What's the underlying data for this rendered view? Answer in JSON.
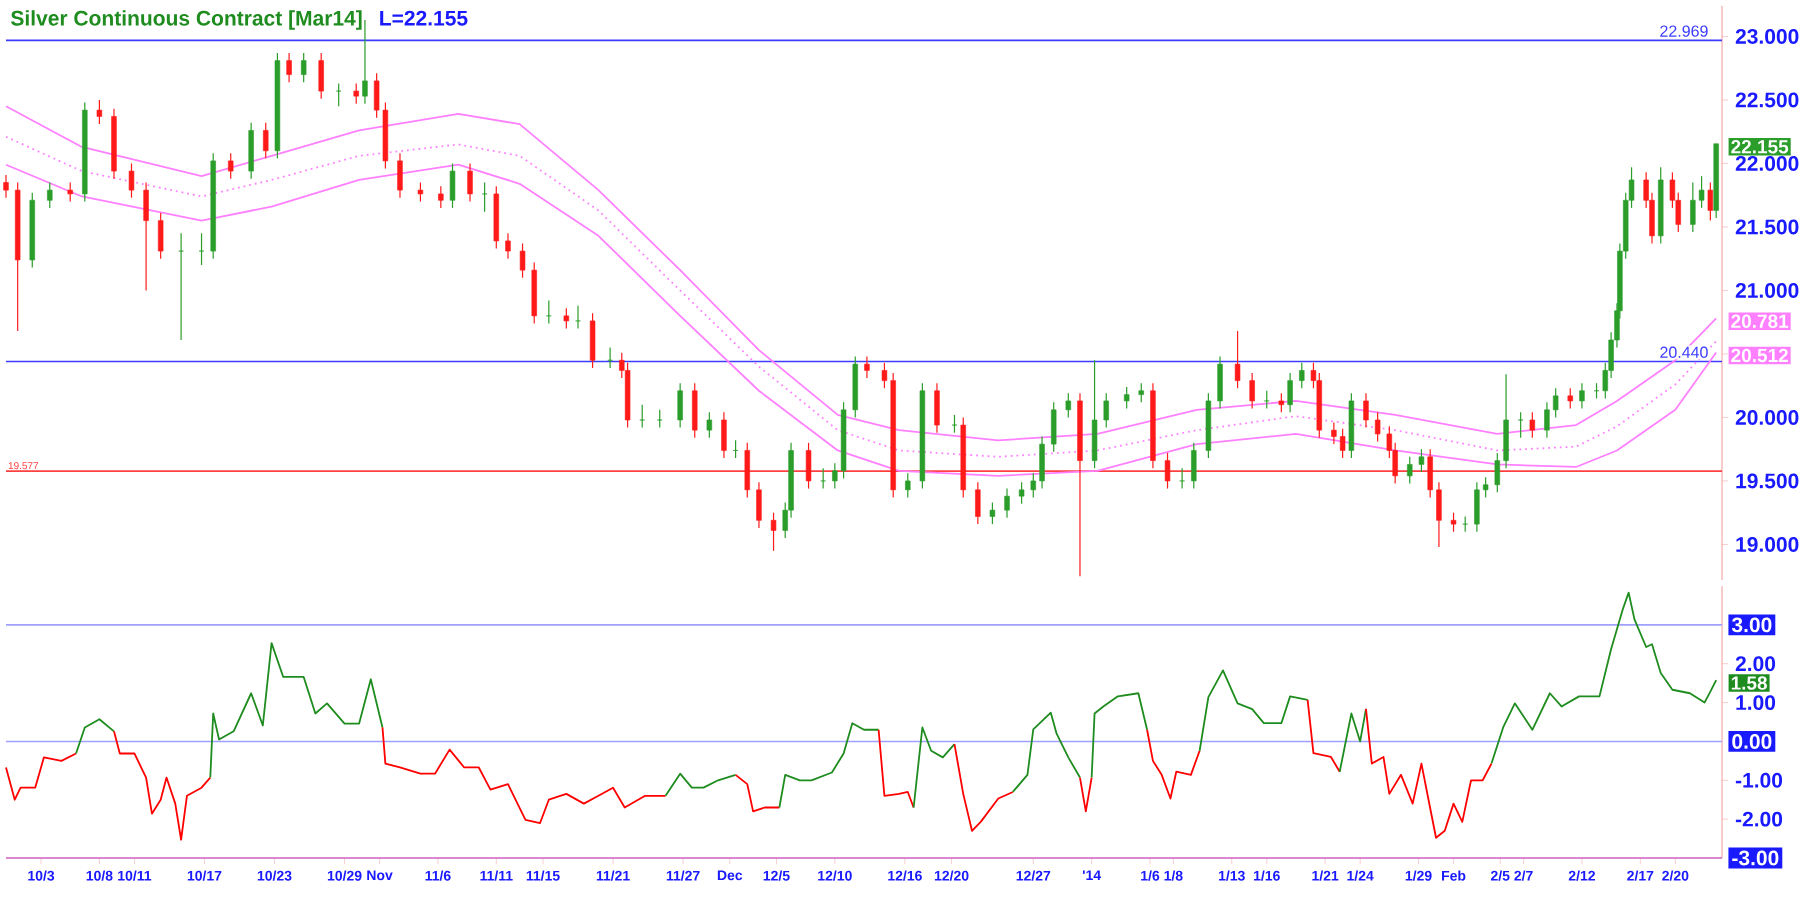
{
  "chart_data": [
    {
      "type": "candlestick",
      "title": "Silver Continuous Contract [Mar14]",
      "subtitle": "L=22.155",
      "x": [
        "2013-09-30",
        "2013-10-01",
        "2013-10-02T06:00",
        "2013-10-03T18:00",
        "2013-10-05T12:00",
        "2013-10-06T18:00",
        "2013-10-08",
        "2013-10-09T06:00",
        "2013-10-10T18:00",
        "2013-10-12",
        "2013-10-13T06:00",
        "2013-10-15",
        "2013-10-16T18:00",
        "2013-10-17T18:00",
        "2013-10-19T06:00",
        "2013-10-21",
        "2013-10-22T06:00",
        "2013-10-23T06:00",
        "2013-10-24T06:00",
        "2013-10-25T12:00",
        "2013-10-27",
        "2013-10-28T12:00",
        "2013-10-30",
        "2013-10-30T18:00",
        "2013-10-31T18:00",
        "2013-11-01T12:00",
        "2013-11-02T18:00",
        "2013-11-04T12:00",
        "2013-11-06T06:00",
        "2013-11-07T06:00",
        "2013-11-08T18:00",
        "2013-11-10",
        "2013-11-11",
        "2013-11-12",
        "2013-11-13T06:00",
        "2013-11-14T06:00",
        "2013-11-15T12:00",
        "2013-11-17",
        "2013-11-18",
        "2013-11-19T06:00",
        "2013-11-20T18:00",
        "2013-11-21T18:00",
        "2013-11-22T06:00",
        "2013-11-23T12:00",
        "2013-11-25",
        "2013-11-26T18:00",
        "2013-11-28",
        "2013-11-29T06:00",
        "2013-11-30T12:00",
        "2013-12-01T12:00",
        "2013-12-02T12:00",
        "2013-12-03T12:00",
        "2013-12-04T18:00",
        "2013-12-05T18:00",
        "2013-12-06T06:00",
        "2013-12-07T18:00",
        "2013-12-09",
        "2013-12-10",
        "2013-12-10T18:00",
        "2013-12-11T18:00",
        "2013-12-12T18:00",
        "2013-12-14T06:00",
        "2013-12-15",
        "2013-12-16T06:00",
        "2013-12-17T12:00",
        "2013-12-18T18:00",
        "2013-12-20T06:00",
        "2013-12-21",
        "2013-12-22T06:00",
        "2013-12-23T12:00",
        "2013-12-24T18:00",
        "2013-12-26",
        "2013-12-27",
        "2013-12-27T18:00",
        "2013-12-28T18:00",
        "2013-12-30",
        "2013-12-31",
        "2014-01-01T06:00",
        "2014-01-02T06:00",
        "2014-01-04",
        "2014-01-05T06:00",
        "2014-01-06T06:00",
        "2014-01-07T12:00",
        "2014-01-08T18:00",
        "2014-01-09T18:00",
        "2014-01-11",
        "2014-01-12",
        "2014-01-13T12:00",
        "2014-01-14T18:00",
        "2014-01-16",
        "2014-01-17T06:00",
        "2014-01-18",
        "2014-01-19",
        "2014-01-20",
        "2014-01-20T12:00",
        "2014-01-21T18:00",
        "2014-01-22T12:00",
        "2014-01-23T06:00",
        "2014-01-24T12:00",
        "2014-01-25T12:00",
        "2014-01-26T12:00",
        "2014-01-27",
        "2014-01-28T06:00",
        "2014-01-29T06:00",
        "2014-01-30",
        "2014-01-30T18:00",
        "2014-02-01",
        "2014-02-02",
        "2014-02-03",
        "2014-02-03T18:00",
        "2014-02-04T18:00",
        "2014-02-05T12:00",
        "2014-02-06T18:00",
        "2014-02-07T18:00",
        "2014-02-09",
        "2014-02-09T18:00",
        "2014-02-11",
        "2014-02-12",
        "2014-02-13T06:00",
        "2014-02-14",
        "2014-02-14T12:00",
        "2014-02-15",
        "2014-02-15T06:00",
        "2014-02-15T18:00",
        "2014-02-16T06:00",
        "2014-02-17T12:00",
        "2014-02-18",
        "2014-02-18T18:00",
        "2014-02-19T18:00",
        "2014-02-20T06:00",
        "2014-02-21T12:00",
        "2014-02-22T06:00",
        "2014-02-23",
        "2014-02-23T12:00"
      ],
      "ohlc": [
        [
          21.85,
          21.91,
          21.73,
          21.79
        ],
        [
          21.79,
          21.85,
          20.68,
          21.24
        ],
        [
          21.24,
          21.77,
          21.18,
          21.71
        ],
        [
          21.71,
          21.85,
          21.65,
          21.79
        ],
        [
          21.79,
          21.85,
          21.7,
          21.76
        ],
        [
          21.76,
          22.48,
          21.7,
          22.42
        ],
        [
          22.42,
          22.5,
          22.31,
          22.37
        ],
        [
          22.37,
          22.43,
          21.88,
          21.94
        ],
        [
          21.94,
          22.0,
          21.73,
          21.79
        ],
        [
          21.79,
          21.85,
          21.0,
          21.55
        ],
        [
          21.55,
          21.61,
          21.25,
          21.31
        ],
        [
          21.31,
          21.45,
          20.61,
          21.31
        ],
        [
          21.31,
          21.45,
          21.2,
          21.31
        ],
        [
          21.31,
          22.08,
          21.25,
          22.02
        ],
        [
          22.02,
          22.08,
          21.88,
          21.94
        ],
        [
          21.94,
          22.32,
          21.88,
          22.26
        ],
        [
          22.26,
          22.32,
          22.04,
          22.1
        ],
        [
          22.1,
          22.87,
          22.04,
          22.81
        ],
        [
          22.81,
          22.87,
          22.64,
          22.7
        ],
        [
          22.7,
          22.87,
          22.64,
          22.81
        ],
        [
          22.81,
          22.87,
          22.51,
          22.57
        ],
        [
          22.57,
          22.63,
          22.45,
          22.57
        ],
        [
          22.57,
          22.63,
          22.47,
          22.53
        ],
        [
          22.53,
          23.13,
          22.47,
          22.65
        ],
        [
          22.65,
          22.71,
          22.36,
          22.42
        ],
        [
          22.42,
          22.48,
          21.96,
          22.02
        ],
        [
          22.02,
          22.08,
          21.73,
          21.79
        ],
        [
          21.79,
          21.85,
          21.7,
          21.76
        ],
        [
          21.76,
          21.82,
          21.65,
          21.71
        ],
        [
          21.71,
          22.0,
          21.65,
          21.94
        ],
        [
          21.94,
          22.0,
          21.7,
          21.76
        ],
        [
          21.76,
          21.85,
          21.62,
          21.76
        ],
        [
          21.76,
          21.82,
          21.33,
          21.39
        ],
        [
          21.39,
          21.45,
          21.25,
          21.31
        ],
        [
          21.31,
          21.37,
          21.1,
          21.16
        ],
        [
          21.16,
          21.22,
          20.74,
          20.8
        ],
        [
          20.8,
          20.92,
          20.74,
          20.8
        ],
        [
          20.8,
          20.86,
          20.7,
          20.76
        ],
        [
          20.76,
          20.88,
          20.7,
          20.76
        ],
        [
          20.76,
          20.82,
          20.39,
          20.45
        ],
        [
          20.45,
          20.55,
          20.39,
          20.45
        ],
        [
          20.45,
          20.51,
          20.31,
          20.37
        ],
        [
          20.37,
          20.43,
          19.92,
          19.98
        ],
        [
          19.98,
          20.1,
          19.92,
          19.98
        ],
        [
          19.98,
          20.06,
          19.92,
          19.98
        ],
        [
          19.98,
          20.27,
          19.92,
          20.21
        ],
        [
          20.21,
          20.27,
          19.84,
          19.9
        ],
        [
          19.9,
          20.04,
          19.84,
          19.98
        ],
        [
          19.98,
          20.04,
          19.68,
          19.74
        ],
        [
          19.74,
          19.82,
          19.68,
          19.74
        ],
        [
          19.74,
          19.8,
          19.37,
          19.43
        ],
        [
          19.43,
          19.49,
          19.13,
          19.19
        ],
        [
          19.19,
          19.25,
          18.95,
          19.11
        ],
        [
          19.11,
          19.33,
          19.05,
          19.27
        ],
        [
          19.27,
          19.8,
          19.21,
          19.74
        ],
        [
          19.74,
          19.8,
          19.44,
          19.5
        ],
        [
          19.5,
          19.6,
          19.44,
          19.5
        ],
        [
          19.5,
          19.64,
          19.44,
          19.58
        ],
        [
          19.58,
          20.12,
          19.52,
          20.06
        ],
        [
          20.06,
          20.48,
          20.0,
          20.42
        ],
        [
          20.42,
          20.48,
          20.31,
          20.37
        ],
        [
          20.37,
          20.43,
          20.23,
          20.29
        ],
        [
          20.29,
          20.35,
          19.37,
          19.43
        ],
        [
          19.43,
          19.56,
          19.37,
          19.5
        ],
        [
          19.5,
          20.27,
          19.44,
          20.21
        ],
        [
          20.21,
          20.27,
          19.88,
          19.94
        ],
        [
          19.94,
          20.02,
          19.88,
          19.94
        ],
        [
          19.94,
          20.0,
          19.37,
          19.43
        ],
        [
          19.43,
          19.49,
          19.16,
          19.22
        ],
        [
          19.22,
          19.33,
          19.16,
          19.27
        ],
        [
          19.27,
          19.44,
          19.21,
          19.38
        ],
        [
          19.38,
          19.49,
          19.32,
          19.43
        ],
        [
          19.43,
          19.56,
          19.37,
          19.5
        ],
        [
          19.5,
          19.85,
          19.44,
          19.79
        ],
        [
          19.79,
          20.12,
          19.73,
          20.06
        ],
        [
          20.06,
          20.19,
          20.0,
          20.13
        ],
        [
          20.13,
          20.19,
          18.75,
          19.66
        ],
        [
          19.66,
          20.45,
          19.6,
          19.98
        ],
        [
          19.98,
          20.19,
          19.92,
          20.13
        ],
        [
          20.13,
          20.24,
          20.07,
          20.18
        ],
        [
          20.18,
          20.27,
          20.12,
          20.21
        ],
        [
          20.21,
          20.27,
          19.6,
          19.66
        ],
        [
          19.66,
          19.72,
          19.44,
          19.5
        ],
        [
          19.5,
          19.6,
          19.44,
          19.5
        ],
        [
          19.5,
          19.8,
          19.44,
          19.74
        ],
        [
          19.74,
          20.19,
          19.68,
          20.13
        ],
        [
          20.13,
          20.48,
          20.07,
          20.42
        ],
        [
          20.42,
          20.68,
          20.23,
          20.29
        ],
        [
          20.29,
          20.35,
          20.07,
          20.13
        ],
        [
          20.13,
          20.21,
          20.07,
          20.13
        ],
        [
          20.13,
          20.19,
          20.04,
          20.1
        ],
        [
          20.1,
          20.35,
          20.04,
          20.29
        ],
        [
          20.29,
          20.43,
          20.23,
          20.37
        ],
        [
          20.37,
          20.43,
          20.23,
          20.29
        ],
        [
          20.29,
          20.35,
          19.84,
          19.9
        ],
        [
          19.9,
          19.96,
          19.79,
          19.85
        ],
        [
          19.85,
          19.91,
          19.68,
          19.74
        ],
        [
          19.74,
          20.19,
          19.68,
          20.13
        ],
        [
          20.13,
          20.19,
          19.92,
          19.98
        ],
        [
          19.98,
          20.04,
          19.81,
          19.87
        ],
        [
          19.87,
          19.93,
          19.68,
          19.74
        ],
        [
          19.74,
          19.8,
          19.48,
          19.54
        ],
        [
          19.54,
          19.69,
          19.48,
          19.63
        ],
        [
          19.63,
          19.75,
          19.57,
          19.69
        ],
        [
          19.69,
          19.75,
          19.37,
          19.43
        ],
        [
          19.43,
          19.49,
          18.98,
          19.19
        ],
        [
          19.19,
          19.25,
          19.1,
          19.16
        ],
        [
          19.16,
          19.22,
          19.1,
          19.16
        ],
        [
          19.16,
          19.49,
          19.1,
          19.43
        ],
        [
          19.43,
          19.53,
          19.37,
          19.47
        ],
        [
          19.47,
          19.72,
          19.41,
          19.66
        ],
        [
          19.66,
          20.34,
          19.6,
          19.98
        ],
        [
          19.98,
          20.04,
          19.84,
          19.98
        ],
        [
          19.98,
          20.04,
          19.84,
          19.9
        ],
        [
          19.9,
          20.12,
          19.84,
          20.06
        ],
        [
          20.06,
          20.23,
          20.0,
          20.17
        ],
        [
          20.17,
          20.23,
          20.07,
          20.13
        ],
        [
          20.13,
          20.27,
          20.07,
          20.21
        ],
        [
          20.21,
          20.27,
          20.15,
          20.21
        ],
        [
          20.21,
          20.43,
          20.15,
          20.37
        ],
        [
          20.37,
          20.67,
          20.31,
          20.61
        ],
        [
          20.61,
          20.9,
          20.55,
          20.84
        ],
        [
          20.84,
          21.37,
          20.78,
          21.31
        ],
        [
          21.31,
          21.77,
          21.25,
          21.71
        ],
        [
          21.71,
          21.97,
          21.65,
          21.87
        ],
        [
          21.87,
          21.93,
          21.65,
          21.71
        ],
        [
          21.71,
          21.77,
          21.37,
          21.43
        ],
        [
          21.43,
          21.97,
          21.37,
          21.87
        ],
        [
          21.87,
          21.93,
          21.65,
          21.71
        ],
        [
          21.71,
          21.77,
          21.46,
          21.52
        ],
        [
          21.52,
          21.85,
          21.46,
          21.71
        ],
        [
          21.71,
          21.9,
          21.65,
          21.79
        ],
        [
          21.79,
          21.85,
          21.55,
          21.63
        ],
        [
          21.63,
          22.155,
          21.57,
          22.155
        ]
      ],
      "series": [
        {
          "type": "line",
          "color": "#ff80ff",
          "line_style": "solid",
          "x": [
            "2013-09-30",
            "2013-10-06T12:00",
            "2013-10-16T18:00",
            "2013-10-22T18:00",
            "2013-10-30T06:00",
            "2013-11-07T18:00",
            "2013-11-13",
            "2013-11-19T18:00",
            "2013-11-26T18:00",
            "2013-12-03T12:00",
            "2013-12-10T06:00",
            "2013-12-15T12:00",
            "2013-12-24",
            "2014-01-01T12:00",
            "2014-01-10",
            "2014-01-18T12:00",
            "2014-01-27",
            "2014-02-04T18:00",
            "2014-02-11T12:00",
            "2014-02-15",
            "2014-02-20",
            "2014-02-23T12:00"
          ],
          "values": [
            22.45,
            22.13,
            21.9,
            22.06,
            22.26,
            22.39,
            22.31,
            21.79,
            21.16,
            20.53,
            20.02,
            19.9,
            19.82,
            19.87,
            20.06,
            20.13,
            20.02,
            19.87,
            19.94,
            20.13,
            20.45,
            20.781
          ]
        },
        {
          "type": "line",
          "color": "#ff80ff",
          "line_style": "dotted",
          "x": [
            "2013-09-30",
            "2013-10-06T12:00",
            "2013-10-16T18:00",
            "2013-10-22T18:00",
            "2013-10-30T06:00",
            "2013-11-07T18:00",
            "2013-11-13",
            "2013-11-19T18:00",
            "2013-11-26T18:00",
            "2013-12-03T12:00",
            "2013-12-10T06:00",
            "2013-12-15T12:00",
            "2013-12-24",
            "2014-01-01T12:00",
            "2014-01-10",
            "2014-01-18T12:00",
            "2014-01-27",
            "2014-02-04T18:00",
            "2014-02-11T12:00",
            "2014-02-15",
            "2014-02-20",
            "2014-02-23T12:00"
          ],
          "values": [
            22.21,
            21.94,
            21.74,
            21.87,
            22.06,
            22.15,
            22.06,
            21.63,
            21.0,
            20.4,
            19.9,
            19.74,
            19.69,
            19.74,
            19.9,
            20.01,
            19.9,
            19.74,
            19.77,
            19.93,
            20.26,
            20.6
          ]
        },
        {
          "type": "line",
          "color": "#ff80ff",
          "line_style": "solid",
          "x": [
            "2013-09-30",
            "2013-10-06T12:00",
            "2013-10-16T18:00",
            "2013-10-22T18:00",
            "2013-10-30T06:00",
            "2013-11-07T18:00",
            "2013-11-13",
            "2013-11-19T18:00",
            "2013-11-26T18:00",
            "2013-12-03T12:00",
            "2013-12-10T06:00",
            "2013-12-15T12:00",
            "2013-12-24",
            "2014-01-01T12:00",
            "2014-01-10",
            "2014-01-18T12:00",
            "2014-01-27",
            "2014-02-04T18:00",
            "2014-02-11T12:00",
            "2014-02-15",
            "2014-02-20",
            "2014-02-23T12:00"
          ],
          "values": [
            21.99,
            21.74,
            21.55,
            21.66,
            21.87,
            21.99,
            21.84,
            21.43,
            20.8,
            20.21,
            19.74,
            19.58,
            19.54,
            19.58,
            19.79,
            19.87,
            19.74,
            19.63,
            19.61,
            19.74,
            20.06,
            20.512
          ]
        }
      ],
      "xlim": [
        "2013-09-30",
        "2014-02-24"
      ],
      "ylim": [
        18.72,
        23.24
      ],
      "yticks": [
        {
          "value": 19,
          "label": "19.000"
        },
        {
          "value": 19.5,
          "label": "19.500"
        },
        {
          "value": 20,
          "label": "20.000"
        },
        {
          "value": 20.5,
          "label": null
        },
        {
          "value": 21,
          "label": "21.000"
        },
        {
          "value": 21.5,
          "label": "21.500"
        },
        {
          "value": 22,
          "label": "22.000"
        },
        {
          "value": 22.5,
          "label": "22.500"
        },
        {
          "value": 23,
          "label": "23.000"
        }
      ],
      "tick_labels": "y",
      "ref_lines": [
        {
          "axis": "y",
          "value": 22.969,
          "label": "22.969",
          "color": "#3c3cff"
        },
        {
          "axis": "y",
          "value": 20.44,
          "label": "20.440",
          "color": "#3c3cff"
        },
        {
          "axis": "y",
          "value": 19.577,
          "label": "19.577",
          "color": "#ff4040"
        }
      ],
      "annotations": [
        {
          "text": "22.155",
          "x": "2014-02-23T12:00",
          "y": 22.155
        },
        {
          "text": "20.781",
          "x": "2014-02-23T12:00",
          "y": 20.781
        },
        {
          "text": "20.512",
          "x": "2014-02-23T12:00",
          "y": 20.512
        }
      ]
    },
    {
      "type": "line",
      "series": [
        {
          "color": "#ff0000",
          "x": [
            "2013-09-30",
            "2013-09-30T18:00",
            "2013-10-01T06:00",
            "2013-10-02T12:00",
            "2013-10-03T06:00",
            "2013-10-04T18:00",
            "2013-10-06"
          ],
          "values": [
            -0.67,
            -1.5,
            -1.19,
            -1.19,
            -0.41,
            -0.5,
            -0.31
          ]
        },
        {
          "color": "#1e8c1e",
          "x": [
            "2013-10-06",
            "2013-10-06T18:00",
            "2013-10-08",
            "2013-10-09T06:00"
          ],
          "values": [
            -0.31,
            0.36,
            0.57,
            0.26
          ]
        },
        {
          "color": "#ff0000",
          "x": [
            "2013-10-09T06:00",
            "2013-10-09T18:00",
            "2013-10-11",
            "2013-10-12",
            "2013-10-12T12:00",
            "2013-10-13T06:00",
            "2013-10-13T18:00",
            "2013-10-14T12:00",
            "2013-10-15",
            "2013-10-15T12:00",
            "2013-10-16T18:00",
            "2013-10-17T12:00"
          ],
          "values": [
            0.26,
            -0.31,
            -0.31,
            -0.93,
            -1.86,
            -1.5,
            -0.93,
            -1.6,
            -2.53,
            -1.4,
            -1.19,
            -0.93
          ]
        },
        {
          "color": "#1e8c1e",
          "x": [
            "2013-10-17T12:00",
            "2013-10-17T18:00",
            "2013-10-18T06:00",
            "2013-10-19T12:00",
            "2013-10-21",
            "2013-10-22",
            "2013-10-22T18:00",
            "2013-10-23T18:00",
            "2013-10-25T12:00",
            "2013-10-26T12:00",
            "2013-10-27T12:00",
            "2013-10-29",
            "2013-10-30T06:00",
            "2013-10-31T06:00",
            "2013-11-01T06:00"
          ],
          "values": [
            -0.93,
            0.72,
            0.05,
            0.26,
            1.24,
            0.41,
            2.53,
            1.66,
            1.66,
            0.72,
            0.98,
            0.46,
            0.46,
            1.6,
            0.36
          ]
        },
        {
          "color": "#ff0000",
          "x": [
            "2013-11-01T06:00",
            "2013-11-01T12:00",
            "2013-11-02T18:00",
            "2013-11-04T12:00",
            "2013-11-05T18:00",
            "2013-11-07",
            "2013-11-08T06:00",
            "2013-11-09T12:00",
            "2013-11-10T12:00",
            "2013-11-12",
            "2013-11-13T12:00",
            "2013-11-14T18:00",
            "2013-11-15T12:00",
            "2013-11-17",
            "2013-11-18T12:00",
            "2013-11-19T18:00",
            "2013-11-21",
            "2013-11-22",
            "2013-11-23T18:00",
            "2013-11-25T12:00"
          ],
          "values": [
            0.36,
            -0.57,
            -0.67,
            -0.83,
            -0.83,
            -0.21,
            -0.67,
            -0.67,
            -1.24,
            -1.1,
            -2.02,
            -2.1,
            -1.5,
            -1.35,
            -1.6,
            -1.4,
            -1.19,
            -1.7,
            -1.4,
            -1.4
          ]
        },
        {
          "color": "#1e8c1e",
          "x": [
            "2013-11-25T12:00",
            "2013-11-26T18:00",
            "2013-11-27T18:00",
            "2013-11-28T18:00",
            "2013-11-30",
            "2013-12-01T12:00"
          ],
          "values": [
            -1.4,
            -0.83,
            -1.19,
            -1.19,
            -1.0,
            -0.86
          ]
        },
        {
          "color": "#ff0000",
          "x": [
            "2013-12-01T12:00",
            "2013-12-02T12:00",
            "2013-12-03",
            "2013-12-04",
            "2013-12-05T06:00"
          ],
          "values": [
            -0.86,
            -1.1,
            -1.8,
            -1.7,
            -1.7
          ]
        },
        {
          "color": "#1e8c1e",
          "x": [
            "2013-12-05T06:00",
            "2013-12-05T18:00",
            "2013-12-07",
            "2013-12-08",
            "2013-12-09T18:00",
            "2013-12-10T18:00",
            "2013-12-11T12:00",
            "2013-12-12T12:00",
            "2013-12-13T18:00"
          ],
          "values": [
            -1.7,
            -0.86,
            -1.0,
            -1.0,
            -0.8,
            -0.31,
            0.47,
            0.3,
            0.3
          ]
        },
        {
          "color": "#ff0000",
          "x": [
            "2013-12-13T18:00",
            "2013-12-14T06:00",
            "2013-12-15T12:00",
            "2013-12-16T06:00",
            "2013-12-16T18:00"
          ],
          "values": [
            0.3,
            -1.4,
            -1.35,
            -1.3,
            -1.7
          ]
        },
        {
          "color": "#1e8c1e",
          "x": [
            "2013-12-16T18:00",
            "2013-12-17T12:00",
            "2013-12-18T06:00",
            "2013-12-19T06:00",
            "2013-12-20T06:00"
          ],
          "values": [
            -1.7,
            0.36,
            -0.24,
            -0.41,
            -0.07
          ]
        },
        {
          "color": "#ff0000",
          "x": [
            "2013-12-20T06:00",
            "2013-12-21",
            "2013-12-21T18:00",
            "2013-12-22T12:00",
            "2013-12-24",
            "2013-12-25T06:00"
          ],
          "values": [
            -0.07,
            -1.35,
            -2.3,
            -2.07,
            -1.47,
            -1.3
          ]
        },
        {
          "color": "#1e8c1e",
          "x": [
            "2013-12-25T06:00",
            "2013-12-26T12:00",
            "2013-12-27",
            "2013-12-28T12:00",
            "2013-12-29",
            "2013-12-30",
            "2013-12-31"
          ],
          "values": [
            -1.3,
            -0.86,
            0.31,
            0.74,
            0.2,
            -0.41,
            -0.93
          ]
        },
        {
          "color": "#ff0000",
          "x": [
            "2013-12-31",
            "2013-12-31T12:00",
            "2014-01-01"
          ],
          "values": [
            -0.93,
            -1.8,
            -0.93
          ]
        },
        {
          "color": "#1e8c1e",
          "x": [
            "2014-01-01",
            "2014-01-01T06:00",
            "2014-01-02",
            "2014-01-03T06:00",
            "2014-01-05",
            "2014-01-05T18:00"
          ],
          "values": [
            -0.93,
            0.72,
            0.9,
            1.16,
            1.24,
            0.3
          ]
        },
        {
          "color": "#ff0000",
          "x": [
            "2014-01-05T18:00",
            "2014-01-06T06:00",
            "2014-01-07",
            "2014-01-07T18:00",
            "2014-01-08T06:00",
            "2014-01-09T12:00",
            "2014-01-10T06:00"
          ],
          "values": [
            0.3,
            -0.5,
            -0.86,
            -1.47,
            -0.78,
            -0.86,
            -0.24
          ]
        },
        {
          "color": "#1e8c1e",
          "x": [
            "2014-01-10T06:00",
            "2014-01-11",
            "2014-01-12T06:00",
            "2014-01-13T12:00",
            "2014-01-14T18:00",
            "2014-01-15T18:00",
            "2014-01-17T06:00",
            "2014-01-18",
            "2014-01-19T12:00"
          ],
          "values": [
            -0.24,
            1.14,
            1.83,
            0.98,
            0.83,
            0.47,
            0.47,
            1.16,
            1.07
          ]
        },
        {
          "color": "#ff0000",
          "x": [
            "2014-01-19T12:00",
            "2014-01-20",
            "2014-01-21T12:00",
            "2014-01-22T06:00"
          ],
          "values": [
            1.07,
            -0.3,
            -0.4,
            -0.78
          ]
        },
        {
          "color": "#1e8c1e",
          "x": [
            "2014-01-22T06:00",
            "2014-01-23T06:00",
            "2014-01-24",
            "2014-01-24T12:00"
          ],
          "values": [
            -0.78,
            0.72,
            0.0,
            0.84
          ]
        },
        {
          "color": "#ff0000",
          "x": [
            "2014-01-24T12:00",
            "2014-01-25",
            "2014-01-26",
            "2014-01-26T12:00",
            "2014-01-27T12:00",
            "2014-01-28T12:00",
            "2014-01-29T06:00",
            "2014-01-30",
            "2014-01-30T12:00",
            "2014-01-31T06:00",
            "2014-02-01",
            "2014-02-01T18:00",
            "2014-02-02T12:00",
            "2014-02-03T12:00",
            "2014-02-04T06:00"
          ],
          "values": [
            0.84,
            -0.57,
            -0.4,
            -1.35,
            -0.86,
            -1.6,
            -0.57,
            -1.72,
            -2.48,
            -2.3,
            -1.6,
            -2.07,
            -1.0,
            -1.0,
            -0.57
          ]
        },
        {
          "color": "#1e8c1e",
          "x": [
            "2014-02-04T06:00",
            "2014-02-05T06:00",
            "2014-02-06T06:00",
            "2014-02-07T18:00",
            "2014-02-09T06:00",
            "2014-02-10T06:00",
            "2014-02-11T18:00",
            "2014-02-13T12:00",
            "2014-02-14T12:00",
            "2014-02-15T12:00",
            "2014-02-16",
            "2014-02-16T12:00",
            "2014-02-17T12:00",
            "2014-02-18",
            "2014-02-18T18:00",
            "2014-02-19T18:00",
            "2014-02-21T06:00",
            "2014-02-22T12:00",
            "2014-02-23",
            "2014-02-23T12:00"
          ],
          "values": [
            -0.57,
            0.36,
            0.98,
            0.3,
            1.24,
            0.9,
            1.16,
            1.16,
            2.38,
            3.4,
            3.83,
            3.14,
            2.43,
            2.5,
            1.76,
            1.33,
            1.24,
            1.0,
            1.28,
            1.58
          ]
        }
      ],
      "xlim": [
        "2013-09-30",
        "2014-02-24"
      ],
      "ylim": [
        -3,
        4
      ],
      "xticks": [
        {
          "value": "2013-10-03",
          "label": "10/3"
        },
        {
          "value": "2013-10-08",
          "label": "10/8"
        },
        {
          "value": "2013-10-11",
          "label": "10/11"
        },
        {
          "value": "2013-10-17",
          "label": "10/17"
        },
        {
          "value": "2013-10-23",
          "label": "10/23"
        },
        {
          "value": "2013-10-29",
          "label": "10/29"
        },
        {
          "value": "2013-11-01",
          "label": "Nov"
        },
        {
          "value": "2013-11-06",
          "label": "11/6"
        },
        {
          "value": "2013-11-11",
          "label": "11/11"
        },
        {
          "value": "2013-11-15",
          "label": "11/15"
        },
        {
          "value": "2013-11-21",
          "label": "11/21"
        },
        {
          "value": "2013-11-27",
          "label": "11/27"
        },
        {
          "value": "2013-12-01",
          "label": "Dec"
        },
        {
          "value": "2013-12-05",
          "label": "12/5"
        },
        {
          "value": "2013-12-10",
          "label": "12/10"
        },
        {
          "value": "2013-12-16",
          "label": "12/16"
        },
        {
          "value": "2013-12-20",
          "label": "12/20"
        },
        {
          "value": "2013-12-27",
          "label": "12/27"
        },
        {
          "value": "2014-01-01",
          "label": "'14"
        },
        {
          "value": "2014-01-06",
          "label": "1/6"
        },
        {
          "value": "2014-01-08",
          "label": "1/8"
        },
        {
          "value": "2014-01-13",
          "label": "1/13"
        },
        {
          "value": "2014-01-16",
          "label": "1/16"
        },
        {
          "value": "2014-01-21",
          "label": "1/21"
        },
        {
          "value": "2014-01-24",
          "label": "1/24"
        },
        {
          "value": "2014-01-29",
          "label": "1/29"
        },
        {
          "value": "2014-02-01",
          "label": "Feb"
        },
        {
          "value": "2014-02-05",
          "label": "2/5"
        },
        {
          "value": "2014-02-07",
          "label": "2/7"
        },
        {
          "value": "2014-02-12",
          "label": "2/12"
        },
        {
          "value": "2014-02-17",
          "label": "2/17"
        },
        {
          "value": "2014-02-20",
          "label": "2/20"
        }
      ],
      "yticks": [
        {
          "value": -2,
          "label": "-2.00"
        },
        {
          "value": -1,
          "label": "-1.00"
        },
        {
          "value": 1,
          "label": "1.00"
        },
        {
          "value": 2,
          "label": "2.00"
        }
      ],
      "ref_lines": [
        {
          "axis": "y",
          "value": 3,
          "label": "3.00",
          "color": "#a0a0ff"
        },
        {
          "axis": "y",
          "value": 0,
          "label": "0.00",
          "color": "#a0a0ff"
        },
        {
          "axis": "y",
          "value": -3,
          "label": "-3.00",
          "color": "#d070d0"
        }
      ],
      "annotations": [
        {
          "text": "1.58",
          "x": "2014-02-23T12:00",
          "y": 1.58
        }
      ]
    }
  ]
}
